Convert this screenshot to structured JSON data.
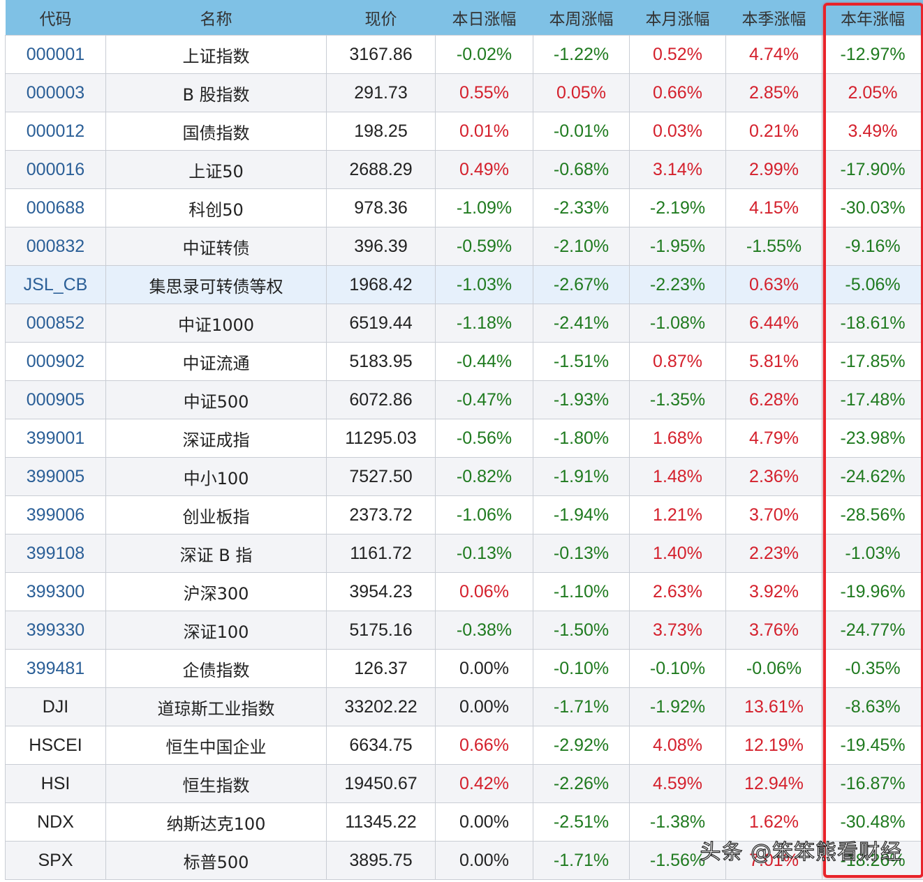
{
  "table": {
    "headers": [
      "代码",
      "名称",
      "现价",
      "本日涨幅",
      "本周涨幅",
      "本月涨幅",
      "本季涨幅",
      "本年涨幅"
    ],
    "highlighted_column": "本年涨幅",
    "rows": [
      {
        "code": "000001",
        "name": "上证指数",
        "price": "3167.86",
        "day": "-0.02%",
        "week": "-1.22%",
        "month": "0.52%",
        "quarter": "4.74%",
        "year": "-12.97%"
      },
      {
        "code": "000003",
        "name": "B 股指数",
        "price": "291.73",
        "day": "0.55%",
        "week": "0.05%",
        "month": "0.66%",
        "quarter": "2.85%",
        "year": "2.05%"
      },
      {
        "code": "000012",
        "name": "国债指数",
        "price": "198.25",
        "day": "0.01%",
        "week": "-0.01%",
        "month": "0.03%",
        "quarter": "0.21%",
        "year": "3.49%"
      },
      {
        "code": "000016",
        "name": "上证50",
        "price": "2688.29",
        "day": "0.49%",
        "week": "-0.68%",
        "month": "3.14%",
        "quarter": "2.99%",
        "year": "-17.90%"
      },
      {
        "code": "000688",
        "name": "科创50",
        "price": "978.36",
        "day": "-1.09%",
        "week": "-2.33%",
        "month": "-2.19%",
        "quarter": "4.15%",
        "year": "-30.03%"
      },
      {
        "code": "000832",
        "name": "中证转债",
        "price": "396.39",
        "day": "-0.59%",
        "week": "-2.10%",
        "month": "-1.95%",
        "quarter": "-1.55%",
        "year": "-9.16%"
      },
      {
        "code": "JSL_CB",
        "name": "集思录可转债等权",
        "price": "1968.42",
        "day": "-1.03%",
        "week": "-2.67%",
        "month": "-2.23%",
        "quarter": "0.63%",
        "year": "-5.06%"
      },
      {
        "code": "000852",
        "name": "中证1000",
        "price": "6519.44",
        "day": "-1.18%",
        "week": "-2.41%",
        "month": "-1.08%",
        "quarter": "6.44%",
        "year": "-18.61%"
      },
      {
        "code": "000902",
        "name": "中证流通",
        "price": "5183.95",
        "day": "-0.44%",
        "week": "-1.51%",
        "month": "0.87%",
        "quarter": "5.81%",
        "year": "-17.85%"
      },
      {
        "code": "000905",
        "name": "中证500",
        "price": "6072.86",
        "day": "-0.47%",
        "week": "-1.93%",
        "month": "-1.35%",
        "quarter": "6.28%",
        "year": "-17.48%"
      },
      {
        "code": "399001",
        "name": "深证成指",
        "price": "11295.03",
        "day": "-0.56%",
        "week": "-1.80%",
        "month": "1.68%",
        "quarter": "4.79%",
        "year": "-23.98%"
      },
      {
        "code": "399005",
        "name": "中小100",
        "price": "7527.50",
        "day": "-0.82%",
        "week": "-1.91%",
        "month": "1.48%",
        "quarter": "2.36%",
        "year": "-24.62%"
      },
      {
        "code": "399006",
        "name": "创业板指",
        "price": "2373.72",
        "day": "-1.06%",
        "week": "-1.94%",
        "month": "1.21%",
        "quarter": "3.70%",
        "year": "-28.56%"
      },
      {
        "code": "399108",
        "name": "深证 B 指",
        "price": "1161.72",
        "day": "-0.13%",
        "week": "-0.13%",
        "month": "1.40%",
        "quarter": "2.23%",
        "year": "-1.03%"
      },
      {
        "code": "399300",
        "name": "沪深300",
        "price": "3954.23",
        "day": "0.06%",
        "week": "-1.10%",
        "month": "2.63%",
        "quarter": "3.92%",
        "year": "-19.96%"
      },
      {
        "code": "399330",
        "name": "深证100",
        "price": "5175.16",
        "day": "-0.38%",
        "week": "-1.50%",
        "month": "3.73%",
        "quarter": "3.76%",
        "year": "-24.77%"
      },
      {
        "code": "399481",
        "name": "企债指数",
        "price": "126.37",
        "day": "0.00%",
        "week": "-0.10%",
        "month": "-0.10%",
        "quarter": "-0.06%",
        "year": "-0.35%"
      },
      {
        "code": "DJI",
        "name": "道琼斯工业指数",
        "price": "33202.22",
        "day": "0.00%",
        "week": "-1.71%",
        "month": "-1.92%",
        "quarter": "13.61%",
        "year": "-8.63%"
      },
      {
        "code": "HSCEI",
        "name": "恒生中国企业",
        "price": "6634.75",
        "day": "0.66%",
        "week": "-2.92%",
        "month": "4.08%",
        "quarter": "12.19%",
        "year": "-19.45%"
      },
      {
        "code": "HSI",
        "name": "恒生指数",
        "price": "19450.67",
        "day": "0.42%",
        "week": "-2.26%",
        "month": "4.59%",
        "quarter": "12.94%",
        "year": "-16.87%"
      },
      {
        "code": "NDX",
        "name": "纳斯达克100",
        "price": "11345.22",
        "day": "0.00%",
        "week": "-2.51%",
        "month": "-1.38%",
        "quarter": "1.62%",
        "year": "-30.48%"
      },
      {
        "code": "SPX",
        "name": "标普500",
        "price": "3895.75",
        "day": "0.00%",
        "week": "-1.71%",
        "month": "-1.56%",
        "quarter": "7.01%",
        "year": "-18.26%"
      }
    ]
  },
  "watermark": "头条 @笨笨熊看财经",
  "colors": {
    "header_bg": "#7fc1e5",
    "positive": "#d4202c",
    "negative": "#1f7a1f",
    "code_link": "#2b5f97",
    "highlight_box": "#e8232a",
    "highlight_row": "#e6f0fb"
  }
}
